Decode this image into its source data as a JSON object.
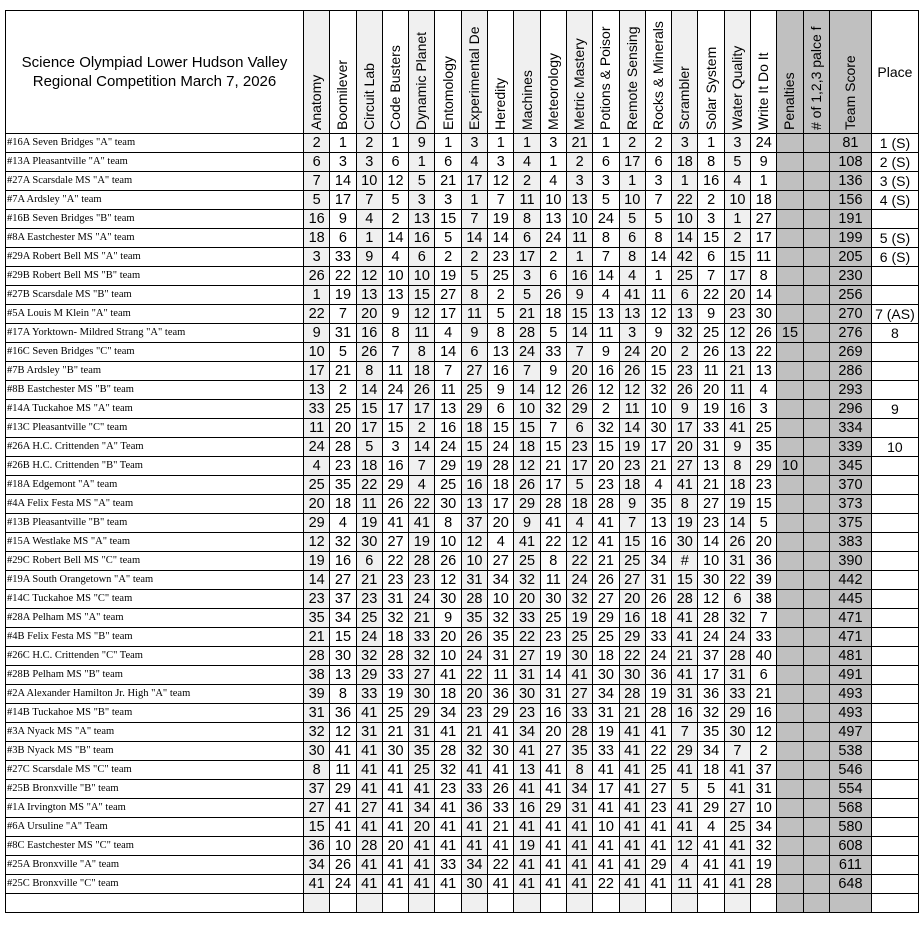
{
  "title_line1": "Science Olympiad Lower Hudson Valley",
  "title_line2": "Regional Competition March 7, 2026",
  "columns": [
    "Anatomy",
    "Boomilever",
    "Circuit Lab",
    "Code Busters",
    "Dynamic Planet",
    "Entomology",
    "Experimental De",
    "Heredity",
    "Machines",
    "Meteorology",
    "Metric Mastery",
    "Potions & Poisor",
    "Remote Sensing",
    "Rocks & Minerals",
    "Scrambler",
    "Solar System",
    "Water Quality",
    "Write It Do It",
    "Penalties",
    "# of 1,2,3 palce f",
    "Team Score",
    "Place"
  ],
  "colors": {
    "alt_column": "#f0f0f0",
    "summary_column": "#c0c0c0"
  },
  "rows": [
    {
      "team": "#16A Seven Bridges \"A\" team",
      "scores": [
        "2",
        "1",
        "2",
        "1",
        "9",
        "1",
        "3",
        "1",
        "1",
        "3",
        "21",
        "1",
        "2",
        "2",
        "3",
        "1",
        "3",
        "24"
      ],
      "penalties": "",
      "count": "",
      "total": "81",
      "place": "1 (S)"
    },
    {
      "team": "#13A Pleasantville  \"A\" team",
      "scores": [
        "6",
        "3",
        "3",
        "6",
        "1",
        "6",
        "4",
        "3",
        "4",
        "1",
        "2",
        "6",
        "17",
        "6",
        "18",
        "8",
        "5",
        "9"
      ],
      "penalties": "",
      "count": "",
      "total": "108",
      "place": "2 (S)"
    },
    {
      "team": "#27A Scarsdale MS  \"A\" team",
      "scores": [
        "7",
        "14",
        "10",
        "12",
        "5",
        "21",
        "17",
        "12",
        "2",
        "4",
        "3",
        "3",
        "1",
        "3",
        "1",
        "16",
        "4",
        "1"
      ],
      "penalties": "",
      "count": "",
      "total": "136",
      "place": "3 (S)"
    },
    {
      "team": "#7A  Ardsley \"A\" team",
      "scores": [
        "5",
        "17",
        "7",
        "5",
        "3",
        "3",
        "1",
        "7",
        "11",
        "10",
        "13",
        "5",
        "10",
        "7",
        "22",
        "2",
        "10",
        "18"
      ],
      "penalties": "",
      "count": "",
      "total": "156",
      "place": "4 (S)"
    },
    {
      "team": "#16B Seven Bridges \"B\" team",
      "scores": [
        "16",
        "9",
        "4",
        "2",
        "13",
        "15",
        "7",
        "19",
        "8",
        "13",
        "10",
        "24",
        "5",
        "5",
        "10",
        "3",
        "1",
        "27"
      ],
      "penalties": "",
      "count": "",
      "total": "191",
      "place": ""
    },
    {
      "team": "#8A  Eastchester MS \"A\" team",
      "scores": [
        "18",
        "6",
        "1",
        "14",
        "16",
        "5",
        "14",
        "14",
        "6",
        "24",
        "11",
        "8",
        "6",
        "8",
        "14",
        "15",
        "2",
        "17"
      ],
      "penalties": "",
      "count": "",
      "total": "199",
      "place": "5 (S)"
    },
    {
      "team": "#29A Robert Bell MS  \"A\" team",
      "scores": [
        "3",
        "33",
        "9",
        "4",
        "6",
        "2",
        "2",
        "23",
        "17",
        "2",
        "1",
        "7",
        "8",
        "14",
        "42",
        "6",
        "15",
        "11"
      ],
      "penalties": "",
      "count": "",
      "total": "205",
      "place": "6 (S)"
    },
    {
      "team": "#29B Robert Bell MS  \"B\" team",
      "scores": [
        "26",
        "22",
        "12",
        "10",
        "10",
        "19",
        "5",
        "25",
        "3",
        "6",
        "16",
        "14",
        "4",
        "1",
        "25",
        "7",
        "17",
        "8"
      ],
      "penalties": "",
      "count": "",
      "total": "230",
      "place": ""
    },
    {
      "team": "#27B Scarsdale MS  \"B\"  team",
      "scores": [
        "1",
        "19",
        "13",
        "13",
        "15",
        "27",
        "8",
        "2",
        "5",
        "26",
        "9",
        "4",
        "41",
        "11",
        "6",
        "22",
        "20",
        "14"
      ],
      "penalties": "",
      "count": "",
      "total": "256",
      "place": ""
    },
    {
      "team": "#5A  Louis M Klein \"A\" team",
      "scores": [
        "22",
        "7",
        "20",
        "9",
        "12",
        "17",
        "11",
        "5",
        "21",
        "18",
        "15",
        "13",
        "13",
        "12",
        "13",
        "9",
        "23",
        "30"
      ],
      "penalties": "",
      "count": "",
      "total": "270",
      "place": "7 (AS)"
    },
    {
      "team": "#17A Yorktown- Mildred Strang \"A\" team",
      "scores": [
        "9",
        "31",
        "16",
        "8",
        "11",
        "4",
        "9",
        "8",
        "28",
        "5",
        "14",
        "11",
        "3",
        "9",
        "32",
        "25",
        "12",
        "26"
      ],
      "penalties": "15",
      "count": "",
      "total": "276",
      "place": "8"
    },
    {
      "team": "#16C Seven Bridges \"C\" team",
      "scores": [
        "10",
        "5",
        "26",
        "7",
        "8",
        "14",
        "6",
        "13",
        "24",
        "33",
        "7",
        "9",
        "24",
        "20",
        "2",
        "26",
        "13",
        "22"
      ],
      "penalties": "",
      "count": "",
      "total": "269",
      "place": ""
    },
    {
      "team": "#7B  Ardsley \"B\" team",
      "scores": [
        "17",
        "21",
        "8",
        "11",
        "18",
        "7",
        "27",
        "16",
        "7",
        "9",
        "20",
        "16",
        "26",
        "15",
        "23",
        "11",
        "21",
        "13"
      ],
      "penalties": "",
      "count": "",
      "total": "286",
      "place": ""
    },
    {
      "team": "#8B  Eastchester MS \"B\" team",
      "scores": [
        "13",
        "2",
        "14",
        "24",
        "26",
        "11",
        "25",
        "9",
        "14",
        "12",
        "26",
        "12",
        "12",
        "32",
        "26",
        "20",
        "11",
        "4"
      ],
      "penalties": "",
      "count": "",
      "total": "293",
      "place": ""
    },
    {
      "team": "#14A Tuckahoe MS  \"A\" team",
      "scores": [
        "33",
        "25",
        "15",
        "17",
        "17",
        "13",
        "29",
        "6",
        "10",
        "32",
        "29",
        "2",
        "11",
        "10",
        "9",
        "19",
        "16",
        "3"
      ],
      "penalties": "",
      "count": "",
      "total": "296",
      "place": "9"
    },
    {
      "team": "#13C Pleasantville  \"C\" team",
      "scores": [
        "11",
        "20",
        "17",
        "15",
        "2",
        "16",
        "18",
        "15",
        "15",
        "7",
        "6",
        "32",
        "14",
        "30",
        "17",
        "33",
        "41",
        "25"
      ],
      "penalties": "",
      "count": "",
      "total": "334",
      "place": ""
    },
    {
      "team": "#26A H.C. Crittenden \"A\" Team",
      "scores": [
        "24",
        "28",
        "5",
        "3",
        "14",
        "24",
        "15",
        "24",
        "18",
        "15",
        "23",
        "15",
        "19",
        "17",
        "20",
        "31",
        "9",
        "35"
      ],
      "penalties": "",
      "count": "",
      "total": "339",
      "place": "10"
    },
    {
      "team": "#26B H.C. Crittenden \"B\" Team",
      "scores": [
        "4",
        "23",
        "18",
        "16",
        "7",
        "29",
        "19",
        "28",
        "12",
        "21",
        "17",
        "20",
        "23",
        "21",
        "27",
        "13",
        "8",
        "29"
      ],
      "penalties": "10",
      "count": "",
      "total": "345",
      "place": ""
    },
    {
      "team": "#18A Edgemont \"A\" team",
      "scores": [
        "25",
        "35",
        "22",
        "29",
        "4",
        "25",
        "16",
        "18",
        "26",
        "17",
        "5",
        "23",
        "18",
        "4",
        "41",
        "21",
        "18",
        "23"
      ],
      "penalties": "",
      "count": "",
      "total": "370",
      "place": ""
    },
    {
      "team": "#4A  Felix Festa MS \"A\" team",
      "scores": [
        "20",
        "18",
        "11",
        "26",
        "22",
        "30",
        "13",
        "17",
        "29",
        "28",
        "18",
        "28",
        "9",
        "35",
        "8",
        "27",
        "19",
        "15"
      ],
      "penalties": "",
      "count": "",
      "total": "373",
      "place": ""
    },
    {
      "team": "#13B Pleasantville  \"B\" team",
      "scores": [
        "29",
        "4",
        "19",
        "41",
        "41",
        "8",
        "37",
        "20",
        "9",
        "41",
        "4",
        "41",
        "7",
        "13",
        "19",
        "23",
        "14",
        "5"
      ],
      "penalties": "",
      "count": "",
      "total": "375",
      "place": ""
    },
    {
      "team": "#15A Westlake MS \"A\" team",
      "scores": [
        "12",
        "32",
        "30",
        "27",
        "19",
        "10",
        "12",
        "4",
        "41",
        "22",
        "12",
        "41",
        "15",
        "16",
        "30",
        "14",
        "26",
        "20"
      ],
      "penalties": "",
      "count": "",
      "total": "383",
      "place": ""
    },
    {
      "team": "#29C Robert Bell MS  \"C\" team",
      "scores": [
        "19",
        "16",
        "6",
        "22",
        "28",
        "26",
        "10",
        "27",
        "25",
        "8",
        "22",
        "21",
        "25",
        "34",
        "#",
        "10",
        "31",
        "36"
      ],
      "penalties": "",
      "count": "",
      "total": "390",
      "place": ""
    },
    {
      "team": "#19A South Orangetown \"A\" team",
      "scores": [
        "14",
        "27",
        "21",
        "23",
        "23",
        "12",
        "31",
        "34",
        "32",
        "11",
        "24",
        "26",
        "27",
        "31",
        "15",
        "30",
        "22",
        "39"
      ],
      "penalties": "",
      "count": "",
      "total": "442",
      "place": ""
    },
    {
      "team": "#14C Tuckahoe MS  \"C\" team",
      "scores": [
        "23",
        "37",
        "23",
        "31",
        "24",
        "30",
        "28",
        "10",
        "20",
        "30",
        "32",
        "27",
        "20",
        "26",
        "28",
        "12",
        "6",
        "38"
      ],
      "penalties": "",
      "count": "",
      "total": "445",
      "place": ""
    },
    {
      "team": "#28A  Pelham MS \"A\" team",
      "scores": [
        "35",
        "34",
        "25",
        "32",
        "21",
        "9",
        "35",
        "32",
        "33",
        "25",
        "19",
        "29",
        "16",
        "18",
        "41",
        "28",
        "32",
        "7"
      ],
      "penalties": "",
      "count": "",
      "total": "471",
      "place": ""
    },
    {
      "team": "#4B  Felix Festa MS \"B\" team",
      "scores": [
        "21",
        "15",
        "24",
        "18",
        "33",
        "20",
        "26",
        "35",
        "22",
        "23",
        "25",
        "25",
        "29",
        "33",
        "41",
        "24",
        "24",
        "33"
      ],
      "penalties": "",
      "count": "",
      "total": "471",
      "place": ""
    },
    {
      "team": "#26C H.C. Crittenden \"C\" Team",
      "scores": [
        "28",
        "30",
        "32",
        "28",
        "32",
        "10",
        "24",
        "31",
        "27",
        "19",
        "30",
        "18",
        "22",
        "24",
        "21",
        "37",
        "28",
        "40"
      ],
      "penalties": "",
      "count": "",
      "total": "481",
      "place": ""
    },
    {
      "team": "#28B  Pelham MS \"B\"  team",
      "scores": [
        "38",
        "13",
        "29",
        "33",
        "27",
        "41",
        "22",
        "11",
        "31",
        "14",
        "41",
        "30",
        "30",
        "36",
        "41",
        "17",
        "31",
        "6"
      ],
      "penalties": "",
      "count": "",
      "total": "491",
      "place": ""
    },
    {
      "team": "#2A  Alexander Hamilton Jr. High \"A\" team",
      "scores": [
        "39",
        "8",
        "33",
        "19",
        "30",
        "18",
        "20",
        "36",
        "30",
        "31",
        "27",
        "34",
        "28",
        "19",
        "31",
        "36",
        "33",
        "21"
      ],
      "penalties": "",
      "count": "",
      "total": "493",
      "place": ""
    },
    {
      "team": "#14B Tuckahoe MS  \"B\" team",
      "scores": [
        "31",
        "36",
        "41",
        "25",
        "29",
        "34",
        "23",
        "29",
        "23",
        "16",
        "33",
        "31",
        "21",
        "28",
        "16",
        "32",
        "29",
        "16"
      ],
      "penalties": "",
      "count": "",
      "total": "493",
      "place": ""
    },
    {
      "team": "#3A  Nyack MS \"A\" team",
      "scores": [
        "32",
        "12",
        "31",
        "21",
        "31",
        "41",
        "21",
        "41",
        "34",
        "20",
        "28",
        "19",
        "41",
        "41",
        "7",
        "35",
        "30",
        "12"
      ],
      "penalties": "",
      "count": "",
      "total": "497",
      "place": ""
    },
    {
      "team": "#3B  Nyack MS \"B\" team",
      "scores": [
        "30",
        "41",
        "41",
        "30",
        "35",
        "28",
        "32",
        "30",
        "41",
        "27",
        "35",
        "33",
        "41",
        "22",
        "29",
        "34",
        "7",
        "2"
      ],
      "penalties": "",
      "count": "",
      "total": "538",
      "place": ""
    },
    {
      "team": "#27C Scarsdale MS  \"C\"  team",
      "scores": [
        "8",
        "11",
        "41",
        "41",
        "25",
        "32",
        "41",
        "41",
        "13",
        "41",
        "8",
        "41",
        "41",
        "25",
        "41",
        "18",
        "41",
        "37"
      ],
      "penalties": "",
      "count": "",
      "total": "546",
      "place": ""
    },
    {
      "team": "#25B Bronxville  \"B\" team",
      "scores": [
        "37",
        "29",
        "41",
        "41",
        "41",
        "23",
        "33",
        "26",
        "41",
        "41",
        "34",
        "17",
        "41",
        "27",
        "5",
        "5",
        "41",
        "31"
      ],
      "penalties": "",
      "count": "",
      "total": "554",
      "place": ""
    },
    {
      "team": "#1A  Irvington MS \"A\" team",
      "scores": [
        "27",
        "41",
        "27",
        "41",
        "34",
        "41",
        "36",
        "33",
        "16",
        "29",
        "31",
        "41",
        "41",
        "23",
        "41",
        "29",
        "27",
        "10"
      ],
      "penalties": "",
      "count": "",
      "total": "568",
      "place": ""
    },
    {
      "team": "#6A  Ursuline \"A\" Team",
      "scores": [
        "15",
        "41",
        "41",
        "41",
        "20",
        "41",
        "41",
        "21",
        "41",
        "41",
        "41",
        "10",
        "41",
        "41",
        "41",
        "4",
        "25",
        "34"
      ],
      "penalties": "",
      "count": "",
      "total": "580",
      "place": ""
    },
    {
      "team": "#8C  Eastchester MS \"C\" team",
      "scores": [
        "36",
        "10",
        "28",
        "20",
        "41",
        "41",
        "41",
        "41",
        "19",
        "41",
        "41",
        "41",
        "41",
        "41",
        "12",
        "41",
        "41",
        "32"
      ],
      "penalties": "",
      "count": "",
      "total": "608",
      "place": ""
    },
    {
      "team": "#25A Bronxville  \"A\" team",
      "scores": [
        "34",
        "26",
        "41",
        "41",
        "41",
        "33",
        "34",
        "22",
        "41",
        "41",
        "41",
        "41",
        "41",
        "29",
        "4",
        "41",
        "41",
        "19"
      ],
      "penalties": "",
      "count": "",
      "total": "611",
      "place": ""
    },
    {
      "team": "#25C Bronxville  \"C\" team",
      "scores": [
        "41",
        "24",
        "41",
        "41",
        "41",
        "41",
        "30",
        "41",
        "41",
        "41",
        "41",
        "22",
        "41",
        "41",
        "11",
        "41",
        "41",
        "28"
      ],
      "penalties": "",
      "count": "",
      "total": "648",
      "place": ""
    }
  ]
}
